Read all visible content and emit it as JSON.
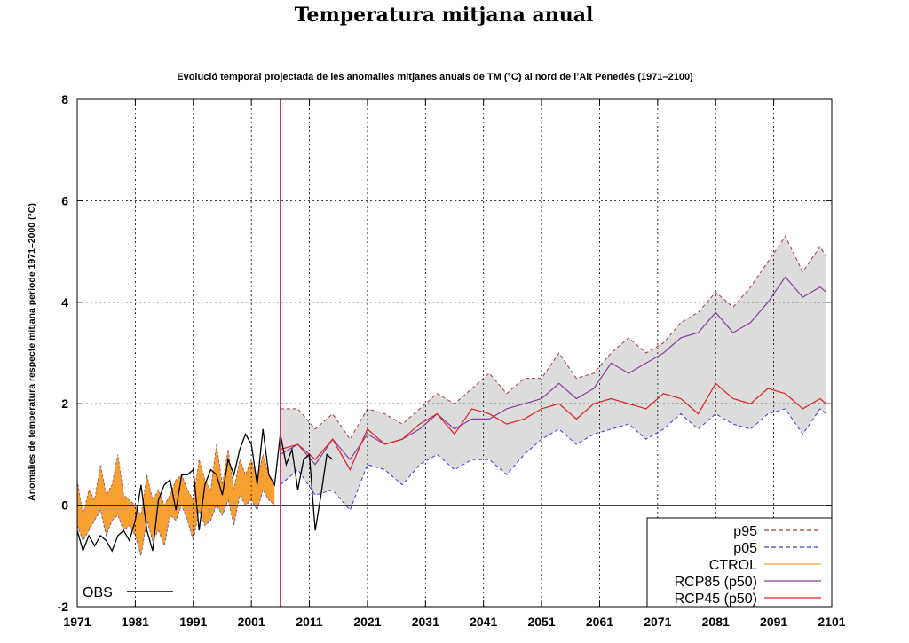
{
  "page": {
    "title": "Temperatura mitjana anual"
  },
  "chart_data": {
    "type": "line",
    "title": "Evolució temporal projectada de les anomalies mitjanes anuals de TM (°C) al nord de l’Alt Penedès (1971–2100)",
    "xlabel": "",
    "ylabel": "Anomalies de temperatura respecte mitjana període 1971–2000 (°C)",
    "xlim": [
      1971,
      2101
    ],
    "ylim": [
      -2,
      8
    ],
    "x_ticks": [
      "1971",
      "1981",
      "1991",
      "2001",
      "2011",
      "2021",
      "2031",
      "2041",
      "2051",
      "2061",
      "2071",
      "2081",
      "2091",
      "2101"
    ],
    "y_ticks": [
      "-2",
      "0",
      "2",
      "4",
      "6",
      "8"
    ],
    "grid": true,
    "vertical_marker_year": 2006,
    "legend_position": "bottom-right",
    "colors": {
      "p95": "#a03c3c",
      "p05": "#3c3ccd",
      "ctrol": "#f7a030",
      "ctrol_fill": "#f7a030",
      "projection_fill": "#dcdcdc",
      "rcp85": "#8c3ca0",
      "rcp45": "#e02020",
      "obs": "#000000",
      "marker": "#c8286e"
    },
    "obs_legend": "OBS",
    "legend": [
      {
        "key": "p95",
        "label": "p95",
        "style": "dashed"
      },
      {
        "key": "p05",
        "label": "p05",
        "style": "dashed"
      },
      {
        "key": "ctrol",
        "label": "CTROL",
        "style": "solid"
      },
      {
        "key": "rcp85",
        "label": "RCP85 (p50)",
        "style": "solid"
      },
      {
        "key": "rcp45",
        "label": "RCP45 (p50)",
        "style": "solid"
      }
    ],
    "ctrol": {
      "x": [
        1971,
        1972,
        1973,
        1974,
        1975,
        1976,
        1977,
        1978,
        1979,
        1980,
        1981,
        1982,
        1983,
        1984,
        1985,
        1986,
        1987,
        1988,
        1989,
        1990,
        1991,
        1992,
        1993,
        1994,
        1995,
        1996,
        1997,
        1998,
        1999,
        2000,
        2001,
        2002,
        2003,
        2004,
        2005
      ],
      "p95": [
        0.5,
        -0.2,
        0.3,
        0.1,
        0.8,
        0.2,
        0.4,
        1.0,
        0.2,
        0.1,
        0.0,
        -0.2,
        0.6,
        0.1,
        0.3,
        0.0,
        0.2,
        0.5,
        0.6,
        0.3,
        0.1,
        0.9,
        0.5,
        0.3,
        1.2,
        0.4,
        1.1,
        0.3,
        0.9,
        0.6,
        0.9,
        0.5,
        1.0,
        0.6,
        0.4
      ],
      "p05": [
        -0.4,
        -0.7,
        -0.5,
        -0.3,
        -0.1,
        -0.6,
        -0.3,
        -0.2,
        -0.5,
        -0.4,
        -0.6,
        -1.0,
        -0.3,
        -0.7,
        -0.5,
        -0.8,
        -0.2,
        -0.3,
        0.0,
        -0.3,
        -0.7,
        -0.1,
        -0.4,
        -0.3,
        0.0,
        -0.2,
        0.1,
        -0.4,
        0.2,
        0.0,
        0.1,
        -0.1,
        0.3,
        0.1,
        0.0
      ]
    },
    "projection": {
      "x": [
        2006,
        2009,
        2012,
        2015,
        2018,
        2021,
        2024,
        2027,
        2030,
        2033,
        2036,
        2039,
        2042,
        2045,
        2048,
        2051,
        2054,
        2057,
        2060,
        2063,
        2066,
        2069,
        2072,
        2075,
        2078,
        2081,
        2084,
        2087,
        2090,
        2093,
        2096,
        2099,
        2100
      ],
      "p95": [
        1.9,
        1.9,
        1.5,
        1.8,
        1.3,
        1.9,
        1.8,
        1.6,
        1.9,
        2.2,
        2.0,
        2.3,
        2.6,
        2.2,
        2.5,
        2.5,
        3.0,
        2.5,
        2.6,
        3.0,
        3.3,
        3.0,
        3.2,
        3.6,
        3.8,
        4.2,
        3.9,
        4.3,
        4.8,
        5.3,
        4.6,
        5.1,
        4.9
      ],
      "p05": [
        0.4,
        0.7,
        0.2,
        0.3,
        -0.1,
        0.8,
        0.7,
        0.4,
        0.8,
        1.0,
        0.7,
        0.9,
        0.9,
        0.6,
        1.0,
        1.3,
        1.5,
        1.2,
        1.4,
        1.5,
        1.6,
        1.3,
        1.5,
        1.8,
        1.5,
        1.8,
        1.6,
        1.5,
        1.8,
        1.9,
        1.4,
        1.9,
        1.8
      ],
      "rcp45": [
        1.1,
        1.2,
        0.9,
        1.3,
        0.7,
        1.5,
        1.2,
        1.3,
        1.6,
        1.8,
        1.4,
        1.9,
        1.8,
        1.6,
        1.7,
        1.9,
        2.0,
        1.7,
        2.0,
        2.1,
        2.0,
        1.9,
        2.2,
        2.1,
        1.8,
        2.4,
        2.1,
        2.0,
        2.3,
        2.2,
        1.9,
        2.1,
        2.0
      ],
      "rcp85": [
        1.0,
        1.2,
        0.8,
        1.3,
        0.9,
        1.4,
        1.2,
        1.3,
        1.5,
        1.8,
        1.5,
        1.7,
        1.7,
        1.9,
        2.0,
        2.1,
        2.4,
        2.1,
        2.3,
        2.8,
        2.6,
        2.8,
        3.0,
        3.3,
        3.4,
        3.8,
        3.4,
        3.6,
        4.0,
        4.5,
        4.1,
        4.3,
        4.2
      ]
    },
    "obs": {
      "x": [
        1971,
        1972,
        1973,
        1974,
        1975,
        1976,
        1977,
        1978,
        1979,
        1980,
        1981,
        1982,
        1983,
        1984,
        1985,
        1986,
        1987,
        1988,
        1989,
        1990,
        1991,
        1992,
        1993,
        1994,
        1995,
        1996,
        1997,
        1998,
        1999,
        2000,
        2001,
        2002,
        2003,
        2004,
        2005,
        2006,
        2007,
        2008,
        2009,
        2010,
        2011,
        2012,
        2013,
        2014,
        2015
      ],
      "y": [
        -0.5,
        -0.9,
        -0.6,
        -0.8,
        -0.6,
        -0.7,
        -0.9,
        -0.6,
        -0.5,
        -0.7,
        -0.3,
        0.4,
        -0.5,
        -0.9,
        0.1,
        0.4,
        0.5,
        -0.1,
        0.6,
        0.6,
        0.7,
        -0.5,
        0.4,
        0.7,
        0.6,
        0.2,
        0.9,
        0.6,
        1.1,
        1.4,
        1.2,
        0.4,
        1.5,
        0.6,
        0.4,
        1.4,
        0.8,
        1.1,
        0.3,
        0.9,
        1.0,
        -0.5,
        0.2,
        1.0,
        0.9
      ]
    }
  }
}
